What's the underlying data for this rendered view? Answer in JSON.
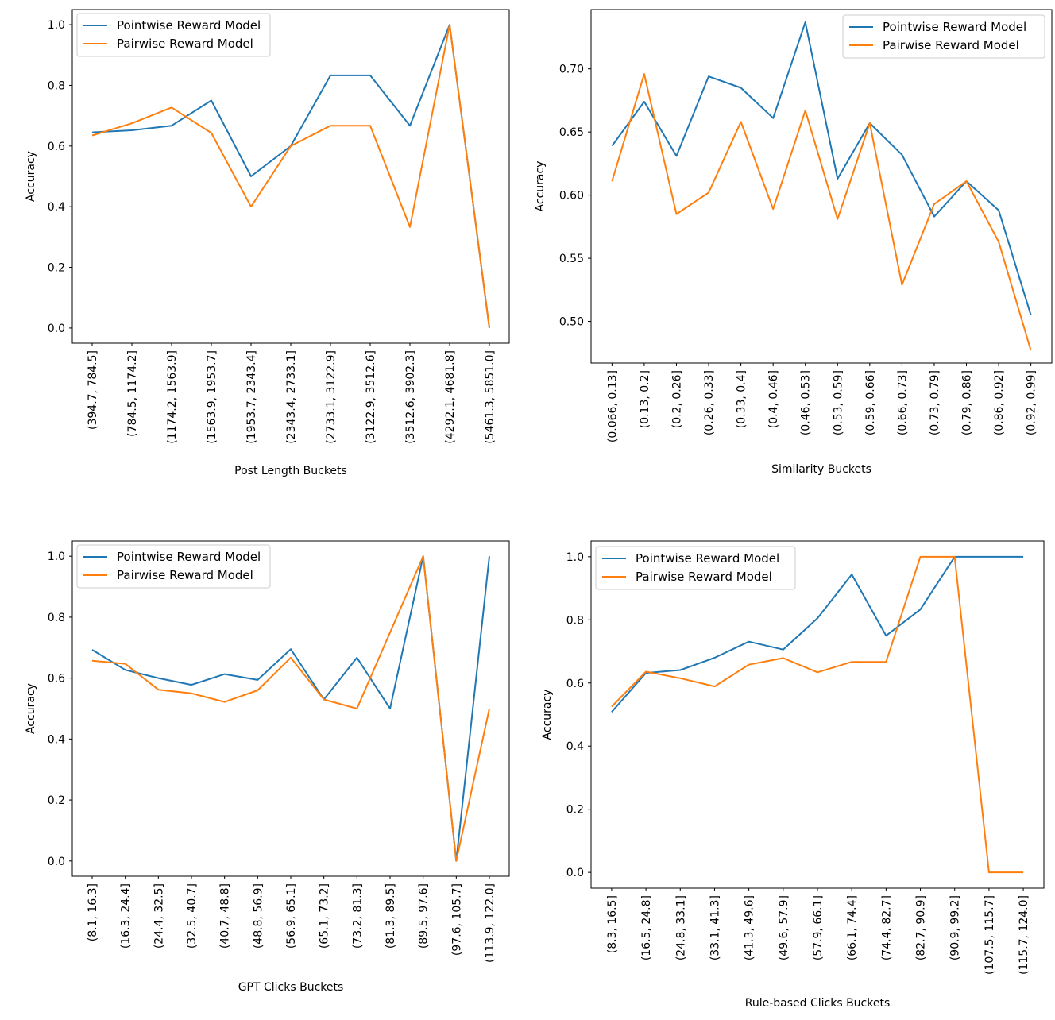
{
  "colors": {
    "pointwise": "#1f77b4",
    "pairwise": "#ff7f0e"
  },
  "chart_data": [
    {
      "type": "line",
      "xlabel": "Post Length Buckets",
      "ylabel": "Accuracy",
      "ylim": [
        -0.05,
        1.05
      ],
      "yticks": [
        "0.0",
        "0.2",
        "0.4",
        "0.6",
        "0.8",
        "1.0"
      ],
      "ytick_values": [
        0,
        0.2,
        0.4,
        0.6,
        0.8,
        1.0
      ],
      "categories": [
        "(394.7, 784.5]",
        "(784.5, 1174.2]",
        "(1174.2, 1563.9]",
        "(1563.9, 1953.7]",
        "(1953.7, 2343.4]",
        "(2343.4, 2733.1]",
        "(2733.1, 3122.9]",
        "(3122.9, 3512.6]",
        "(3512.6, 3902.3]",
        "(4292.1, 4681.8]",
        "(5461.3, 5851.0]"
      ],
      "series": [
        {
          "name": "Pointwise Reward Model",
          "values": [
            0.645,
            0.652,
            0.667,
            0.75,
            0.5,
            0.6,
            0.833,
            0.833,
            0.667,
            1.0,
            0.0
          ]
        },
        {
          "name": "Pairwise Reward Model",
          "values": [
            0.635,
            0.675,
            0.727,
            0.643,
            0.4,
            0.6,
            0.667,
            0.667,
            0.333,
            1.0,
            0.0
          ]
        }
      ],
      "legend": "top-left"
    },
    {
      "type": "line",
      "xlabel": "Similarity Buckets",
      "ylabel": "Accuracy",
      "ylim": [
        0.467,
        0.747
      ],
      "yticks": [
        "0.50",
        "0.55",
        "0.60",
        "0.65",
        "0.70"
      ],
      "ytick_values": [
        0.5,
        0.55,
        0.6,
        0.65,
        0.7
      ],
      "categories": [
        "(0.066, 0.13]",
        "(0.13, 0.2]",
        "(0.2, 0.26]",
        "(0.26, 0.33]",
        "(0.33, 0.4]",
        "(0.4, 0.46]",
        "(0.46, 0.53]",
        "(0.53, 0.59]",
        "(0.59, 0.66]",
        "(0.66, 0.73]",
        "(0.73, 0.79]",
        "(0.79, 0.86]",
        "(0.86, 0.92]",
        "(0.92, 0.99]"
      ],
      "series": [
        {
          "name": "Pointwise Reward Model",
          "values": [
            0.639,
            0.674,
            0.631,
            0.694,
            0.685,
            0.661,
            0.737,
            0.613,
            0.657,
            0.632,
            0.583,
            0.611,
            0.588,
            0.505
          ]
        },
        {
          "name": "Pairwise Reward Model",
          "values": [
            0.611,
            0.696,
            0.585,
            0.602,
            0.658,
            0.589,
            0.667,
            0.581,
            0.657,
            0.529,
            0.593,
            0.611,
            0.563,
            0.477
          ]
        }
      ],
      "legend": "top-right"
    },
    {
      "type": "line",
      "xlabel": "GPT Clicks Buckets",
      "ylabel": "Accuracy",
      "ylim": [
        -0.05,
        1.05
      ],
      "yticks": [
        "0.0",
        "0.2",
        "0.4",
        "0.6",
        "0.8",
        "1.0"
      ],
      "ytick_values": [
        0,
        0.2,
        0.4,
        0.6,
        0.8,
        1.0
      ],
      "categories": [
        "(8.1, 16.3]",
        "(16.3, 24.4]",
        "(24.4, 32.5]",
        "(32.5, 40.7]",
        "(40.7, 48.8]",
        "(48.8, 56.9]",
        "(56.9, 65.1]",
        "(65.1, 73.2]",
        "(73.2, 81.3]",
        "(81.3, 89.5]",
        "(89.5, 97.6]",
        "(97.6, 105.7]",
        "(113.9, 122.0]"
      ],
      "series": [
        {
          "name": "Pointwise Reward Model",
          "values": [
            0.693,
            0.627,
            0.6,
            0.578,
            0.613,
            0.594,
            0.695,
            0.53,
            0.667,
            0.5,
            1.0,
            0.0,
            1.0
          ]
        },
        {
          "name": "Pairwise Reward Model",
          "values": [
            0.657,
            0.647,
            0.562,
            0.55,
            0.522,
            0.56,
            0.667,
            0.53,
            0.5,
            0.75,
            1.0,
            0.0,
            0.5
          ]
        }
      ],
      "legend": "top-left"
    },
    {
      "type": "line",
      "xlabel": "Rule-based Clicks Buckets",
      "ylabel": "Accuracy",
      "ylim": [
        -0.05,
        1.05
      ],
      "yticks": [
        "0.0",
        "0.2",
        "0.4",
        "0.6",
        "0.8",
        "1.0"
      ],
      "ytick_values": [
        0,
        0.2,
        0.4,
        0.6,
        0.8,
        1.0
      ],
      "categories": [
        "(8.3, 16.5]",
        "(16.5, 24.8]",
        "(24.8, 33.1]",
        "(33.1, 41.3]",
        "(41.3, 49.6]",
        "(49.6, 57.9]",
        "(57.9, 66.1]",
        "(66.1, 74.4]",
        "(74.4, 82.7]",
        "(82.7, 90.9]",
        "(90.9, 99.2]",
        "(107.5, 115.7]",
        "(115.7, 124.0]"
      ],
      "series": [
        {
          "name": "Pointwise Reward Model",
          "values": [
            0.508,
            0.632,
            0.641,
            0.68,
            0.731,
            0.706,
            0.805,
            0.944,
            0.75,
            0.833,
            1.0,
            1.0,
            1.0
          ]
        },
        {
          "name": "Pairwise Reward Model",
          "values": [
            0.525,
            0.636,
            0.615,
            0.589,
            0.658,
            0.679,
            0.634,
            0.667,
            0.667,
            1.0,
            1.0,
            0.0,
            0.0
          ]
        }
      ],
      "legend": "top-left"
    }
  ]
}
